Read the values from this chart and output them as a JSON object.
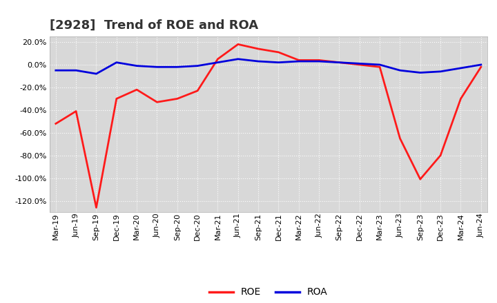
{
  "title": "[2928]  Trend of ROE and ROA",
  "x_labels": [
    "Mar-19",
    "Jun-19",
    "Sep-19",
    "Dec-19",
    "Mar-20",
    "Jun-20",
    "Sep-20",
    "Dec-20",
    "Mar-21",
    "Jun-21",
    "Sep-21",
    "Dec-21",
    "Mar-22",
    "Jun-22",
    "Sep-22",
    "Dec-22",
    "Mar-23",
    "Jun-23",
    "Sep-23",
    "Dec-23",
    "Mar-24",
    "Jun-24"
  ],
  "roe": [
    -52,
    -41,
    -126,
    -30,
    -22,
    -33,
    -30,
    -23,
    5,
    18,
    14,
    11,
    4,
    4,
    2,
    0,
    -2,
    -65,
    -101,
    -80,
    -30,
    -2
  ],
  "roa": [
    -5,
    -5,
    -8,
    2,
    -1,
    -2,
    -2,
    -1,
    2,
    5,
    3,
    2,
    3,
    3,
    2,
    1,
    0,
    -5,
    -7,
    -6,
    -3,
    0
  ],
  "roe_color": "#ff1a1a",
  "roa_color": "#0000dd",
  "ylim_min": -130,
  "ylim_max": 25,
  "yticks": [
    20,
    0,
    -20,
    -40,
    -60,
    -80,
    -100,
    -120
  ],
  "background_color": "#ffffff",
  "plot_bg_color": "#d8d8d8",
  "grid_color": "#ffffff",
  "title_color": "#333333",
  "legend_roe": "ROE",
  "legend_roa": "ROA",
  "title_fontsize": 13,
  "tick_fontsize": 8,
  "legend_fontsize": 10
}
